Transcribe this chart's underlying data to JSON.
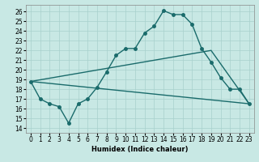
{
  "title": "",
  "xlabel": "Humidex (Indice chaleur)",
  "bg_color": "#c8e8e4",
  "line_color": "#1a6b6b",
  "grid_color": "#a8d0cc",
  "xlim": [
    -0.5,
    23.5
  ],
  "ylim": [
    13.5,
    26.7
  ],
  "yticks": [
    14,
    15,
    16,
    17,
    18,
    19,
    20,
    21,
    22,
    23,
    24,
    25,
    26
  ],
  "xticks": [
    0,
    1,
    2,
    3,
    4,
    5,
    6,
    7,
    8,
    9,
    10,
    11,
    12,
    13,
    14,
    15,
    16,
    17,
    18,
    19,
    20,
    21,
    22,
    23
  ],
  "line1_x": [
    0,
    1,
    2,
    3,
    4,
    5,
    6,
    7,
    8,
    9,
    10,
    11,
    12,
    13,
    14,
    15,
    16,
    17,
    18,
    19,
    20,
    21,
    22,
    23
  ],
  "line1_y": [
    18.8,
    17.0,
    16.5,
    16.2,
    14.5,
    16.5,
    17.0,
    18.2,
    19.8,
    21.5,
    22.2,
    22.2,
    23.8,
    24.5,
    26.1,
    25.7,
    25.7,
    24.7,
    22.2,
    20.8,
    19.2,
    18.0,
    18.0,
    16.5
  ],
  "line2_x": [
    0,
    23
  ],
  "line2_y": [
    18.8,
    16.5
  ],
  "line3_x": [
    0,
    19,
    23
  ],
  "line3_y": [
    18.8,
    22.0,
    16.5
  ],
  "marker_size": 2.5,
  "line_width": 1.0,
  "tick_fontsize": 5.5,
  "xlabel_fontsize": 6.0
}
